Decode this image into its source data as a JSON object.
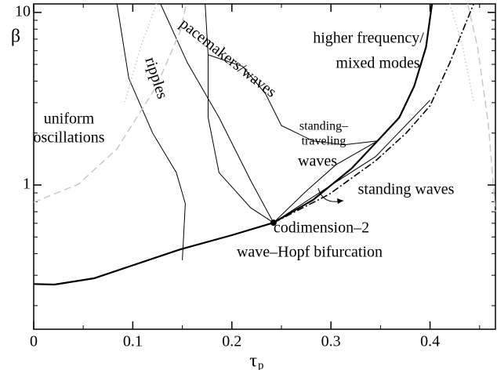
{
  "chart_data": {
    "type": "line",
    "xlabel": "τ",
    "xlabel_sub": "p",
    "ylabel": "β",
    "xlim": [
      0,
      0.466
    ],
    "ylim": [
      0.146,
      11.2
    ],
    "yscale": "log",
    "xticks": [
      0,
      0.1,
      0.2,
      0.3,
      0.4
    ],
    "xminorticks": [
      0.05,
      0.15,
      0.25,
      0.35,
      0.45
    ],
    "yticks": [
      1,
      10
    ],
    "yminorticks": [
      0.2,
      0.3,
      0.4,
      0.5,
      0.6,
      0.7,
      0.8,
      0.9,
      2,
      3,
      4,
      5,
      6,
      7,
      8,
      9
    ],
    "curves": [
      {
        "style": "thick",
        "color": "#000",
        "x": [
          0,
          0.021,
          0.061,
          0.101,
          0.148,
          0.2,
          0.242,
          0.282,
          0.321,
          0.347,
          0.369,
          0.384,
          0.396,
          0.402
        ],
        "y": [
          0.267,
          0.265,
          0.288,
          0.344,
          0.424,
          0.512,
          0.605,
          0.82,
          1.25,
          1.8,
          2.46,
          3.74,
          6.31,
          11.2
        ]
      },
      {
        "style": "dashdot",
        "color": "#000",
        "x": [
          0.242,
          0.298,
          0.345,
          0.376,
          0.4,
          0.42,
          0.436,
          0.444
        ],
        "y": [
          0.605,
          0.882,
          1.38,
          2.0,
          2.88,
          5.12,
          8.64,
          11.2
        ]
      },
      {
        "style": "thin",
        "color": "#000",
        "x": [
          0.242,
          0.274,
          0.305,
          0.347
        ],
        "y": [
          0.605,
          0.91,
          1.31,
          1.8
        ]
      },
      {
        "style": "thin",
        "color": "#000",
        "x": [
          0.242,
          0.298,
          0.345,
          0.4
        ],
        "y": [
          0.605,
          0.98,
          1.46,
          3.1
        ]
      },
      {
        "style": "thin",
        "color": "#000",
        "x": [
          0.128,
          0.155,
          0.187,
          0.219,
          0.242
        ],
        "y": [
          11.2,
          5.12,
          2.46,
          1.06,
          0.605
        ]
      },
      {
        "style": "thin",
        "color": "#000",
        "x": [
          0.173,
          0.176,
          0.176,
          0.187,
          0.219,
          0.242
        ],
        "y": [
          11.2,
          5.68,
          2.46,
          1.18,
          0.738,
          0.605
        ]
      },
      {
        "style": "thin",
        "color": "#000",
        "x": [
          0.176,
          0.211,
          0.234,
          0.25,
          0.282,
          0.313,
          0.347
        ],
        "y": [
          5.68,
          4.86,
          3.37,
          2.21,
          1.8,
          1.71,
          1.8
        ]
      },
      {
        "style": "thin",
        "color": "#000",
        "x": [
          0.084,
          0.096,
          0.12,
          0.144,
          0.153,
          0.15
        ],
        "y": [
          11.2,
          4.15,
          2.0,
          1.18,
          0.78,
          0.367
        ]
      },
      {
        "style": "dashed",
        "color": "#c8c8c8",
        "x": [
          0,
          0.045,
          0.084,
          0.124,
          0.148,
          0.154
        ],
        "y": [
          0.794,
          1.01,
          1.62,
          3.74,
          7.78,
          11.2
        ]
      },
      {
        "style": "dashed",
        "color": "#c8c8c8",
        "x": [
          0.438,
          0.448,
          0.459,
          0.466
        ],
        "y": [
          11.2,
          6.31,
          2.21,
          0.7
        ]
      },
      {
        "style": "dotted",
        "color": "#c8c8c8",
        "x": [
          0.124,
          0.108,
          0.092
        ],
        "y": [
          11.2,
          6.31,
          3.03
        ]
      },
      {
        "style": "dotted",
        "color": "#c8c8c8",
        "x": [
          0.42,
          0.433,
          0.444
        ],
        "y": [
          11.2,
          6.31,
          3.03
        ]
      }
    ],
    "point": {
      "x": 0.242,
      "y": 0.605
    },
    "annotations": [
      "uniform",
      "oscillations",
      "ripples",
      "pacemakers/waves",
      "higher frequency/",
      "mixed modes",
      "standing–",
      "traveling",
      "waves",
      "standing waves",
      "codimension–2",
      "wave–Hopf bifurcation"
    ]
  }
}
